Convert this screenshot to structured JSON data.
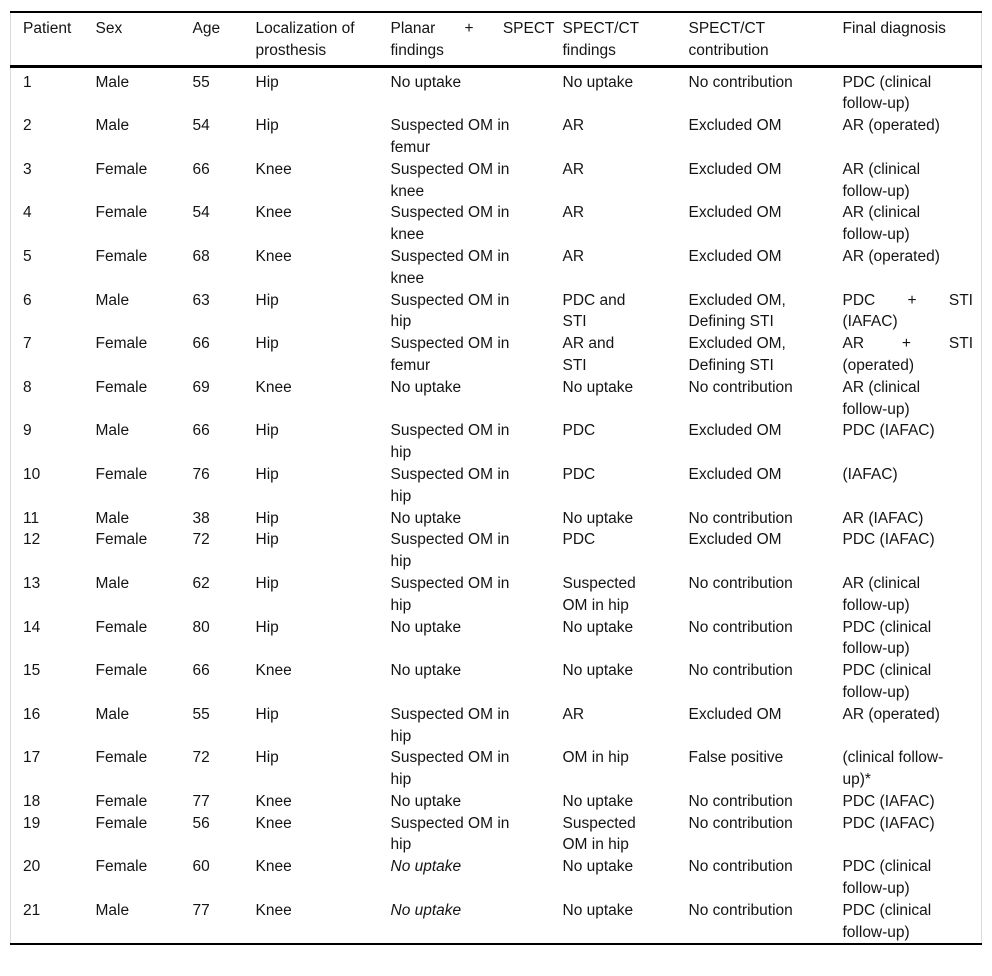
{
  "colors": {
    "rule": "#000000",
    "side_border": "#d9d9d9",
    "text": "#141414",
    "background": "#ffffff"
  },
  "table": {
    "columns": [
      {
        "key": "patient",
        "label": "Patient"
      },
      {
        "key": "sex",
        "label": "Sex"
      },
      {
        "key": "age",
        "label": "Age"
      },
      {
        "key": "localization",
        "label": "Localization of\nprosthesis"
      },
      {
        "key": "planar-spect-findings",
        "label": {
          "text": "Planar + SPECT\nfindings",
          "justify": true
        }
      },
      {
        "key": "spect-ct-findings",
        "label": "SPECT/CT\nfindings"
      },
      {
        "key": "spect-ct-contribution",
        "label": "SPECT/CT\ncontribution"
      },
      {
        "key": "final-diagnosis",
        "label": "Final diagnosis"
      }
    ],
    "rows": [
      [
        "1",
        "Male",
        "55",
        "Hip",
        "No uptake",
        "No uptake",
        "No contribution",
        "PDC (clinical\nfollow-up)"
      ],
      [
        "2",
        "Male",
        "54",
        "Hip",
        "Suspected OM in\nfemur",
        "AR",
        "Excluded OM",
        "AR (operated)"
      ],
      [
        "3",
        "Female",
        "66",
        "Knee",
        "Suspected OM in\nknee",
        "AR",
        "Excluded OM",
        "AR (clinical\nfollow-up)"
      ],
      [
        "4",
        "Female",
        "54",
        "Knee",
        "Suspected OM in\nknee",
        "AR",
        "Excluded OM",
        "AR (clinical\nfollow-up)"
      ],
      [
        "5",
        "Female",
        "68",
        "Knee",
        "Suspected OM in\nknee",
        "AR",
        "Excluded OM",
        "AR (operated)"
      ],
      [
        "6",
        "Male",
        "63",
        "Hip",
        "Suspected OM in\nhip",
        "PDC and\nSTI",
        "Excluded OM,\nDefining STI",
        {
          "text": "PDC + STI\n(IAFAC)",
          "justify": true
        }
      ],
      [
        "7",
        "Female",
        "66",
        "Hip",
        "Suspected OM in\nfemur",
        "AR and\nSTI",
        "Excluded OM,\nDefining STI",
        {
          "text": "AR + STI\n(operated)",
          "justify": true
        }
      ],
      [
        "8",
        "Female",
        "69",
        "Knee",
        "No uptake",
        "No uptake",
        "No contribution",
        "AR (clinical\nfollow-up)"
      ],
      [
        "9",
        "Male",
        "66",
        "Hip",
        "Suspected OM in\nhip",
        "PDC",
        "Excluded OM",
        "PDC (IAFAC)"
      ],
      [
        "10",
        "Female",
        "76",
        "Hip",
        "Suspected OM in\nhip",
        "PDC",
        "Excluded OM",
        "(IAFAC)"
      ],
      [
        "11",
        "Male",
        "38",
        "Hip",
        "No uptake",
        "No uptake",
        "No contribution",
        "AR (IAFAC)"
      ],
      [
        "12",
        "Female",
        "72",
        "Hip",
        "Suspected OM in\nhip",
        "PDC",
        "Excluded OM",
        "PDC (IAFAC)"
      ],
      [
        "13",
        "Male",
        "62",
        "Hip",
        "Suspected OM in\nhip",
        "Suspected\nOM in hip",
        "No contribution",
        "AR (clinical\nfollow-up)"
      ],
      [
        "14",
        "Female",
        "80",
        "Hip",
        "No uptake",
        "No uptake",
        "No contribution",
        "PDC (clinical\nfollow-up)"
      ],
      [
        "15",
        "Female",
        "66",
        "Knee",
        "No uptake",
        "No uptake",
        "No contribution",
        "PDC (clinical\nfollow-up)"
      ],
      [
        "16",
        "Male",
        "55",
        "Hip",
        "Suspected OM in\nhip",
        "AR",
        "Excluded OM",
        "AR (operated)"
      ],
      [
        "17",
        "Female",
        "72",
        "Hip",
        "Suspected OM in\nhip",
        "OM in hip",
        "False positive",
        "(clinical follow-\nup)*"
      ],
      [
        "18",
        "Female",
        "77",
        "Knee",
        "No uptake",
        "No uptake",
        "No contribution",
        "PDC (IAFAC)"
      ],
      [
        "19",
        "Female",
        "56",
        "Knee",
        "Suspected OM in\nhip",
        "Suspected\nOM in hip",
        "No contribution",
        "PDC (IAFAC)"
      ],
      [
        "20",
        "Female",
        "60",
        "Knee",
        {
          "text": "No uptake",
          "italic": true
        },
        "No uptake",
        "No contribution",
        "PDC (clinical\nfollow-up)"
      ],
      [
        "21",
        "Male",
        "77",
        "Knee",
        {
          "text": "No uptake",
          "italic": true
        },
        "No uptake",
        "No contribution",
        "PDC (clinical\nfollow-up)"
      ]
    ]
  }
}
